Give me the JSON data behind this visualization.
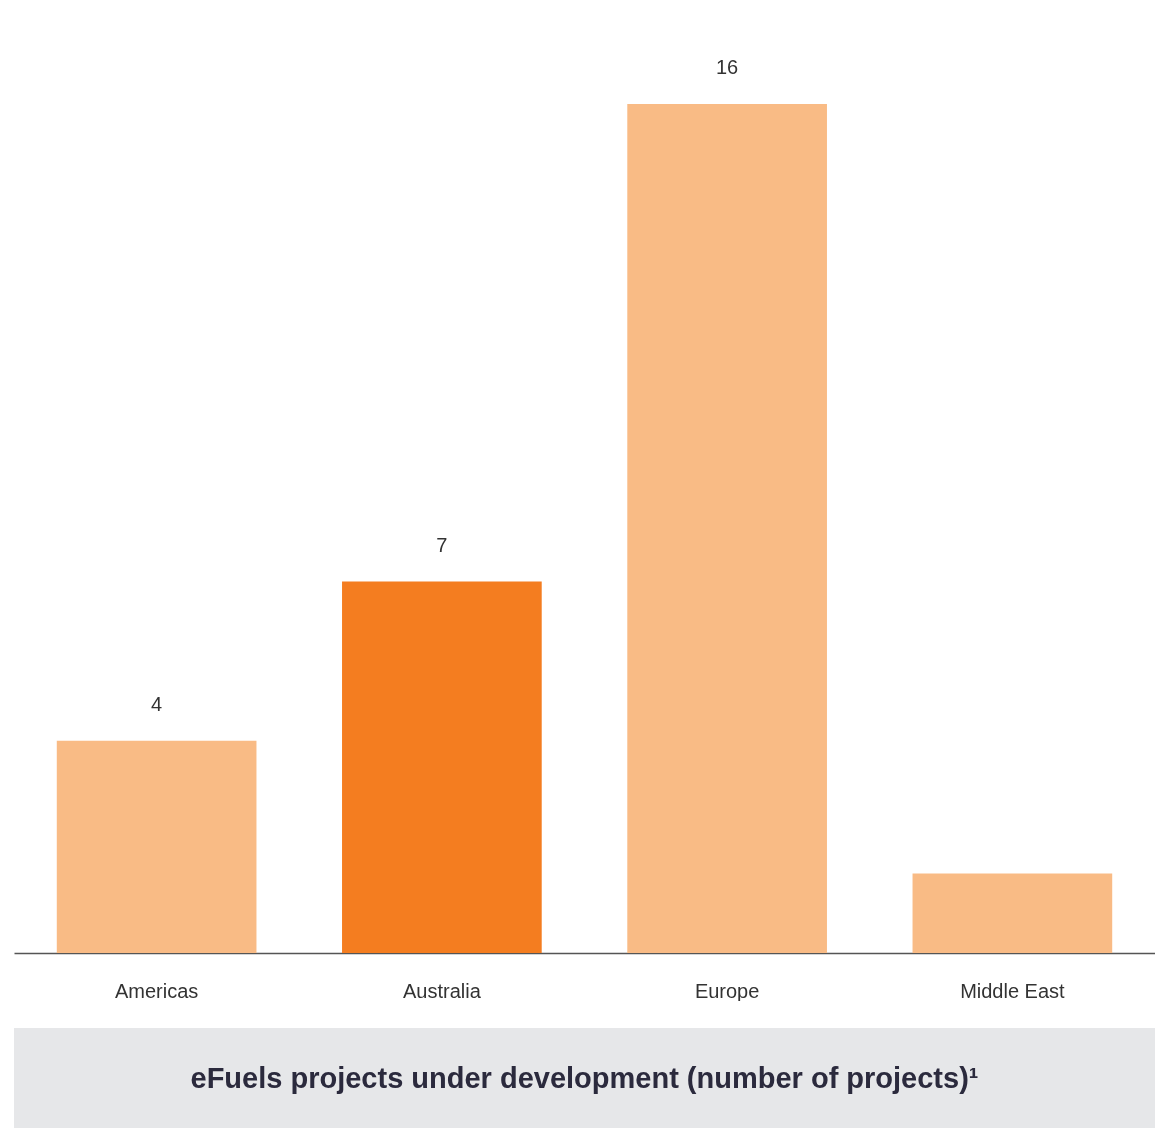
{
  "chart_data": {
    "type": "bar",
    "title": "eFuels projects under development (number of projects)¹",
    "categories": [
      "Americas",
      "Australia",
      "Europe",
      "Middle East"
    ],
    "values": [
      4,
      7,
      16,
      1.5
    ],
    "colors": [
      "#f9bb85",
      "#f47d20",
      "#f9bb85",
      "#f9bb85"
    ],
    "value_labels": [
      "4",
      "7",
      "16",
      null
    ]
  }
}
